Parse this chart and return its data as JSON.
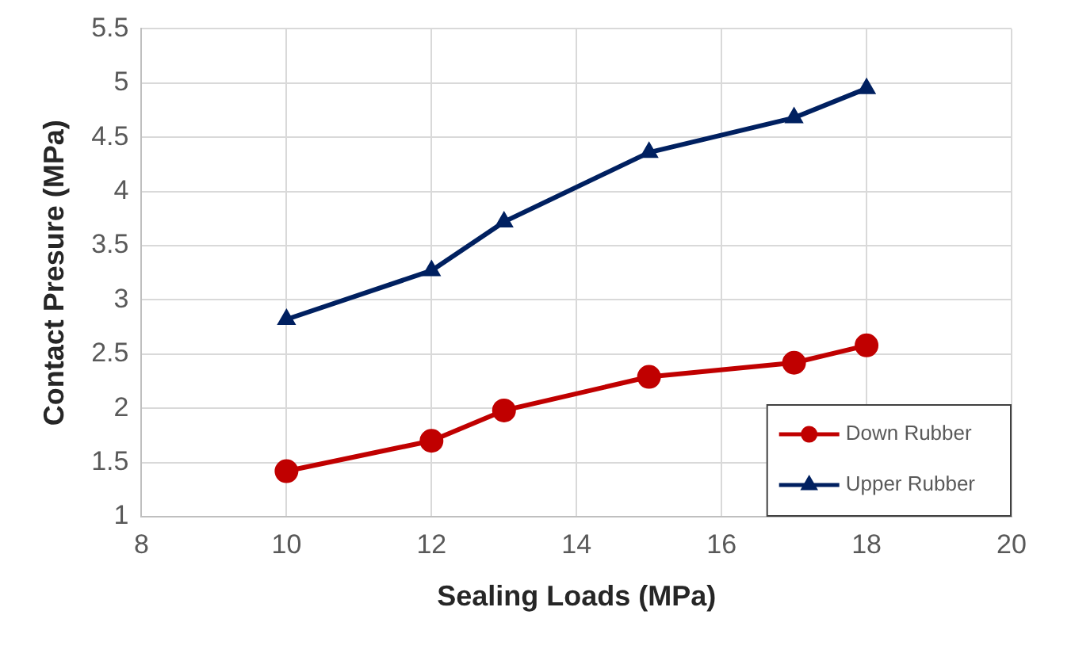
{
  "chart_data": {
    "type": "line",
    "xlabel": "Sealing Loads (MPa)",
    "ylabel": "Contact Presure (MPa)",
    "x": [
      10,
      12,
      13,
      15,
      17,
      18
    ],
    "series": [
      {
        "name": "Down Rubber",
        "color": "#c00000",
        "marker": "circle",
        "values": [
          1.42,
          1.7,
          1.98,
          2.29,
          2.42,
          2.58
        ]
      },
      {
        "name": "Upper Rubber",
        "color": "#002060",
        "marker": "triangle",
        "values": [
          2.82,
          3.27,
          3.72,
          4.36,
          4.68,
          4.95
        ]
      }
    ],
    "xlim": [
      8,
      20
    ],
    "xticks": [
      8,
      10,
      12,
      14,
      16,
      18,
      20
    ],
    "ylim": [
      1,
      5.5
    ],
    "yticks": [
      1,
      1.5,
      2,
      2.5,
      3,
      3.5,
      4,
      4.5,
      5,
      5.5
    ],
    "grid": true,
    "legend": "bottom right"
  }
}
